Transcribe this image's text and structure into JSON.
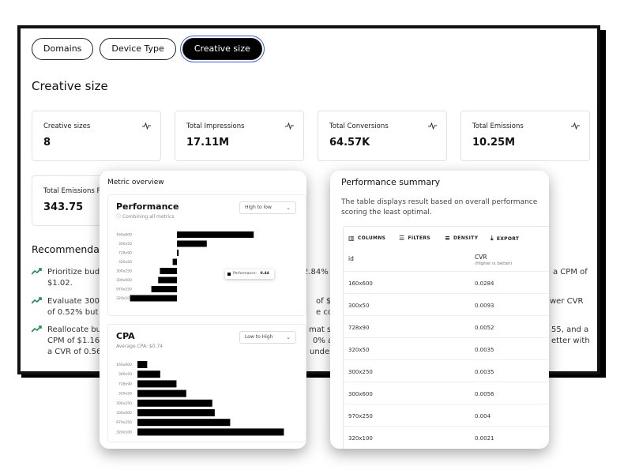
{
  "tabs": [
    {
      "label": "Domains"
    },
    {
      "label": "Device Type"
    },
    {
      "label": "Creative size",
      "active": true
    }
  ],
  "section_title": "Creative size",
  "kpis": [
    {
      "label": "Creative sizes",
      "value": "8",
      "icon": "activity-icon"
    },
    {
      "label": "Total Impressions",
      "value": "17.11M",
      "icon": "activity-icon"
    },
    {
      "label": "Total Conversions",
      "value": "64.57K",
      "icon": "activity-icon"
    },
    {
      "label": "Total Emissions",
      "value": "10.25M",
      "icon": "activity-icon"
    },
    {
      "label": "Total Emissions Pe",
      "value": "343.75"
    }
  ],
  "recommendations": {
    "title": "Recommenda",
    "items": [
      {
        "text_left_1": "Prioritize budg",
        "text_left_2": "$1.02.",
        "frag_mid": "2.84% a",
        "frag_right": "a CPM of"
      },
      {
        "text_left_1": "Evaluate 300x5",
        "text_left_2": "of 0.52% but a",
        "frag_mid_1": "of $0.0",
        "frag_mid_2": "e con",
        "frag_right": "wer CVR"
      },
      {
        "text_left_1": "Reallocate bud",
        "text_left_2": "CPM of $1.16. T",
        "text_left_3": "a CVR of 0.56%",
        "frag_mid_1": "mat sh",
        "frag_mid_2": "0% an",
        "frag_mid_3": "under",
        "frag_right_1": "55, and a",
        "frag_right_2": "etter with"
      }
    ]
  },
  "metric_overview": {
    "title": "Metric overview",
    "performance": {
      "title": "Performance",
      "subtitle": "Combining all metrics",
      "sort": "High to low",
      "tooltip_label": "Performance",
      "tooltip_value": "0.44"
    },
    "cpa": {
      "title": "CPA",
      "subtitle": "Average CPA: $0.74",
      "sort": "Low to High"
    }
  },
  "performance_summary": {
    "title": "Performance summary",
    "description": "The table displays result based on overall performance scoring the least optimal.",
    "toolbar": {
      "columns": "COLUMNS",
      "filters": "FILTERS",
      "density": "DENSITY",
      "export": "EXPORT"
    },
    "headers": {
      "id": "id",
      "cvr": "CVR",
      "cvr_sub": "(Higher is better)"
    },
    "rows": [
      {
        "id": "160x600",
        "cvr": "0.0284"
      },
      {
        "id": "300x50",
        "cvr": "0.0093"
      },
      {
        "id": "728x90",
        "cvr": "0.0052"
      },
      {
        "id": "320x50",
        "cvr": "0.0035"
      },
      {
        "id": "300x250",
        "cvr": "0.0035"
      },
      {
        "id": "300x600",
        "cvr": "0.0056"
      },
      {
        "id": "970x250",
        "cvr": "0.004"
      },
      {
        "id": "320x100",
        "cvr": "0.0021"
      }
    ]
  },
  "chart_data": [
    {
      "type": "bar",
      "title": "Performance",
      "orientation": "diverging-horizontal",
      "categories": [
        "160x600",
        "300x50",
        "728x90",
        "320x50",
        "300x250",
        "300x600",
        "970x250",
        "320x100"
      ],
      "values": [
        0.9,
        0.35,
        0.02,
        -0.05,
        -0.2,
        -0.22,
        -0.3,
        -0.55
      ]
    },
    {
      "type": "bar",
      "title": "CPA",
      "orientation": "horizontal",
      "categories": [
        "160x600",
        "300x50",
        "728x90",
        "320x50",
        "300x250",
        "300x600",
        "970x250",
        "320x100"
      ],
      "values": [
        0.12,
        0.28,
        0.48,
        0.6,
        0.92,
        0.95,
        1.14,
        1.8
      ]
    }
  ]
}
